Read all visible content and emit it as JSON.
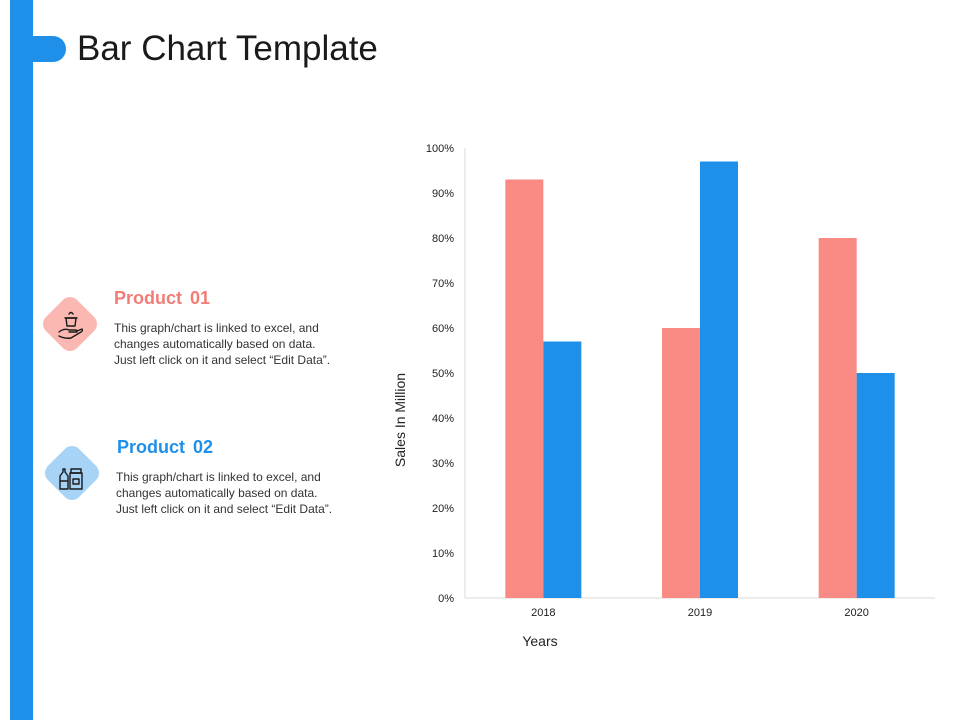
{
  "title": "Bar Chart Template",
  "colors": {
    "accent": "#1e90ea",
    "product_01": "#fa8a84",
    "product_02": "#1e90ea"
  },
  "products": [
    {
      "label": "Product",
      "number": "01",
      "icon": "hand-holding-pot-icon",
      "description": [
        "This graph/chart is linked to excel, and",
        "changes automatically based on data.",
        "Just left click on it and select “Edit Data”."
      ]
    },
    {
      "label": "Product",
      "number": "02",
      "icon": "bottles-jar-icon",
      "description": [
        "This graph/chart is linked to excel, and",
        "changes automatically based on data.",
        "Just left click on it and select “Edit Data”."
      ]
    }
  ],
  "chart_data": {
    "type": "bar",
    "categories": [
      "2018",
      "2019",
      "2020"
    ],
    "series": [
      {
        "values": [
          93,
          60,
          80
        ],
        "color": "#fa8a84"
      },
      {
        "values": [
          57,
          97,
          50
        ],
        "color": "#1e90ea"
      }
    ],
    "xlabel": "Years",
    "ylabel": "Sales In Million",
    "ylim": [
      0,
      100
    ],
    "yticks": [
      "0%",
      "10%",
      "20%",
      "30%",
      "40%",
      "50%",
      "60%",
      "70%",
      "80%",
      "90%",
      "100%"
    ],
    "grid": false
  }
}
